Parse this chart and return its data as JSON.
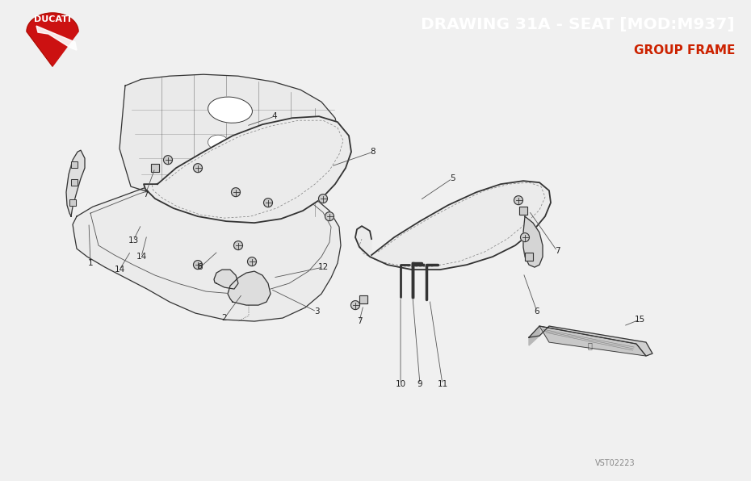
{
  "title": "DRAWING 31A - SEAT [MOD:M937]",
  "subtitle": "GROUP FRAME",
  "title_color": "#ffffff",
  "subtitle_color": "#cc2200",
  "header_bg": "#2b2b2b",
  "body_bg": "#f0f0f0",
  "watermark": "VST02223",
  "line_color": "#333333",
  "label_color": "#222222"
}
